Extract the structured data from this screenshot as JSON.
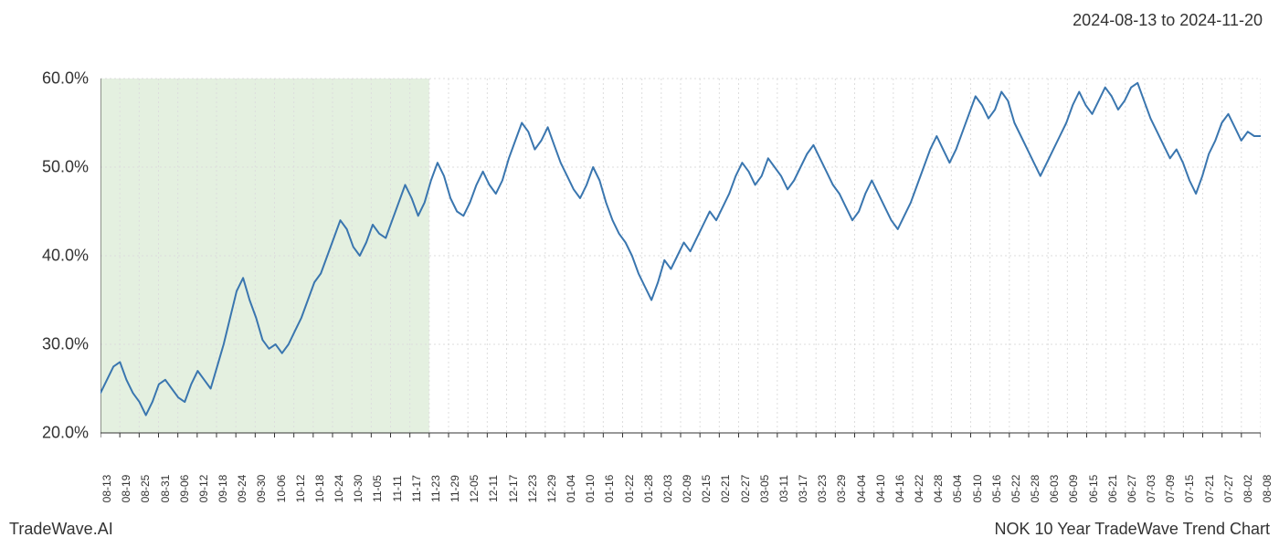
{
  "header": {
    "date_range": "2024-08-13 to 2024-11-20"
  },
  "footer": {
    "left": "TradeWave.AI",
    "right": "NOK 10 Year TradeWave Trend Chart"
  },
  "chart": {
    "type": "line",
    "background_color": "#ffffff",
    "line_color": "#3a76af",
    "line_width": 2,
    "highlight_band": {
      "x_start_index": 0,
      "x_end_index": 17,
      "fill_color": "#d9ead3",
      "opacity": 0.7
    },
    "grid": {
      "vertical_color": "#dddddd",
      "vertical_dash": "2,3",
      "horizontal_color": "#dddddd",
      "horizontal_dash": "2,3"
    },
    "axis_color": "#333333",
    "y_axis": {
      "min": 20.0,
      "max": 60.0,
      "ticks": [
        20.0,
        30.0,
        40.0,
        50.0,
        60.0
      ],
      "tick_labels": [
        "20.0%",
        "30.0%",
        "40.0%",
        "50.0%",
        "60.0%"
      ],
      "label_fontsize": 18
    },
    "x_axis": {
      "labels": [
        "08-13",
        "08-19",
        "08-25",
        "08-31",
        "09-06",
        "09-12",
        "09-18",
        "09-24",
        "09-30",
        "10-06",
        "10-12",
        "10-18",
        "10-24",
        "10-30",
        "11-05",
        "11-11",
        "11-17",
        "11-23",
        "11-29",
        "12-05",
        "12-11",
        "12-17",
        "12-23",
        "12-29",
        "01-04",
        "01-10",
        "01-16",
        "01-22",
        "01-28",
        "02-03",
        "02-09",
        "02-15",
        "02-21",
        "02-27",
        "03-05",
        "03-11",
        "03-17",
        "03-23",
        "03-29",
        "04-04",
        "04-10",
        "04-16",
        "04-22",
        "04-28",
        "05-04",
        "05-10",
        "05-16",
        "05-22",
        "05-28",
        "06-03",
        "06-09",
        "06-15",
        "06-21",
        "06-27",
        "07-03",
        "07-09",
        "07-15",
        "07-21",
        "07-27",
        "08-02",
        "08-08"
      ],
      "label_fontsize": 12,
      "label_rotation": -90
    },
    "series": {
      "values": [
        24.5,
        26.0,
        27.5,
        28.0,
        26.0,
        24.5,
        23.5,
        22.0,
        23.5,
        25.5,
        26.0,
        25.0,
        24.0,
        23.5,
        25.5,
        27.0,
        26.0,
        25.0,
        27.5,
        30.0,
        33.0,
        36.0,
        37.5,
        35.0,
        33.0,
        30.5,
        29.5,
        30.0,
        29.0,
        30.0,
        31.5,
        33.0,
        35.0,
        37.0,
        38.0,
        40.0,
        42.0,
        44.0,
        43.0,
        41.0,
        40.0,
        41.5,
        43.5,
        42.5,
        42.0,
        44.0,
        46.0,
        48.0,
        46.5,
        44.5,
        46.0,
        48.5,
        50.5,
        49.0,
        46.5,
        45.0,
        44.5,
        46.0,
        48.0,
        49.5,
        48.0,
        47.0,
        48.5,
        51.0,
        53.0,
        55.0,
        54.0,
        52.0,
        53.0,
        54.5,
        52.5,
        50.5,
        49.0,
        47.5,
        46.5,
        48.0,
        50.0,
        48.5,
        46.0,
        44.0,
        42.5,
        41.5,
        40.0,
        38.0,
        36.5,
        35.0,
        37.0,
        39.5,
        38.5,
        40.0,
        41.5,
        40.5,
        42.0,
        43.5,
        45.0,
        44.0,
        45.5,
        47.0,
        49.0,
        50.5,
        49.5,
        48.0,
        49.0,
        51.0,
        50.0,
        49.0,
        47.5,
        48.5,
        50.0,
        51.5,
        52.5,
        51.0,
        49.5,
        48.0,
        47.0,
        45.5,
        44.0,
        45.0,
        47.0,
        48.5,
        47.0,
        45.5,
        44.0,
        43.0,
        44.5,
        46.0,
        48.0,
        50.0,
        52.0,
        53.5,
        52.0,
        50.5,
        52.0,
        54.0,
        56.0,
        58.0,
        57.0,
        55.5,
        56.5,
        58.5,
        57.5,
        55.0,
        53.5,
        52.0,
        50.5,
        49.0,
        50.5,
        52.0,
        53.5,
        55.0,
        57.0,
        58.5,
        57.0,
        56.0,
        57.5,
        59.0,
        58.0,
        56.5,
        57.5,
        59.0,
        59.5,
        57.5,
        55.5,
        54.0,
        52.5,
        51.0,
        52.0,
        50.5,
        48.5,
        47.0,
        49.0,
        51.5,
        53.0,
        55.0,
        56.0,
        54.5,
        53.0,
        54.0,
        53.5,
        53.5
      ]
    }
  }
}
